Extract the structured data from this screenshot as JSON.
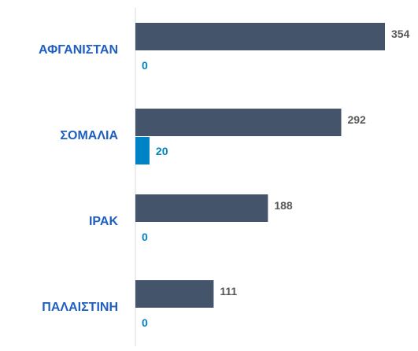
{
  "chart_data": {
    "type": "bar",
    "orientation": "horizontal",
    "categories": [
      "ΑΦΓΑΝΙΣΤΑΝ",
      "ΣΟΜΑΛΙΑ",
      "ΙΡΑΚ",
      "ΠΑΛΑΙΣΤΙΝΗ"
    ],
    "series": [
      {
        "color": "#44546a",
        "values": [
          354,
          292,
          188,
          111
        ]
      },
      {
        "color": "#0083c5",
        "values": [
          0,
          20,
          0,
          0
        ]
      }
    ]
  }
}
